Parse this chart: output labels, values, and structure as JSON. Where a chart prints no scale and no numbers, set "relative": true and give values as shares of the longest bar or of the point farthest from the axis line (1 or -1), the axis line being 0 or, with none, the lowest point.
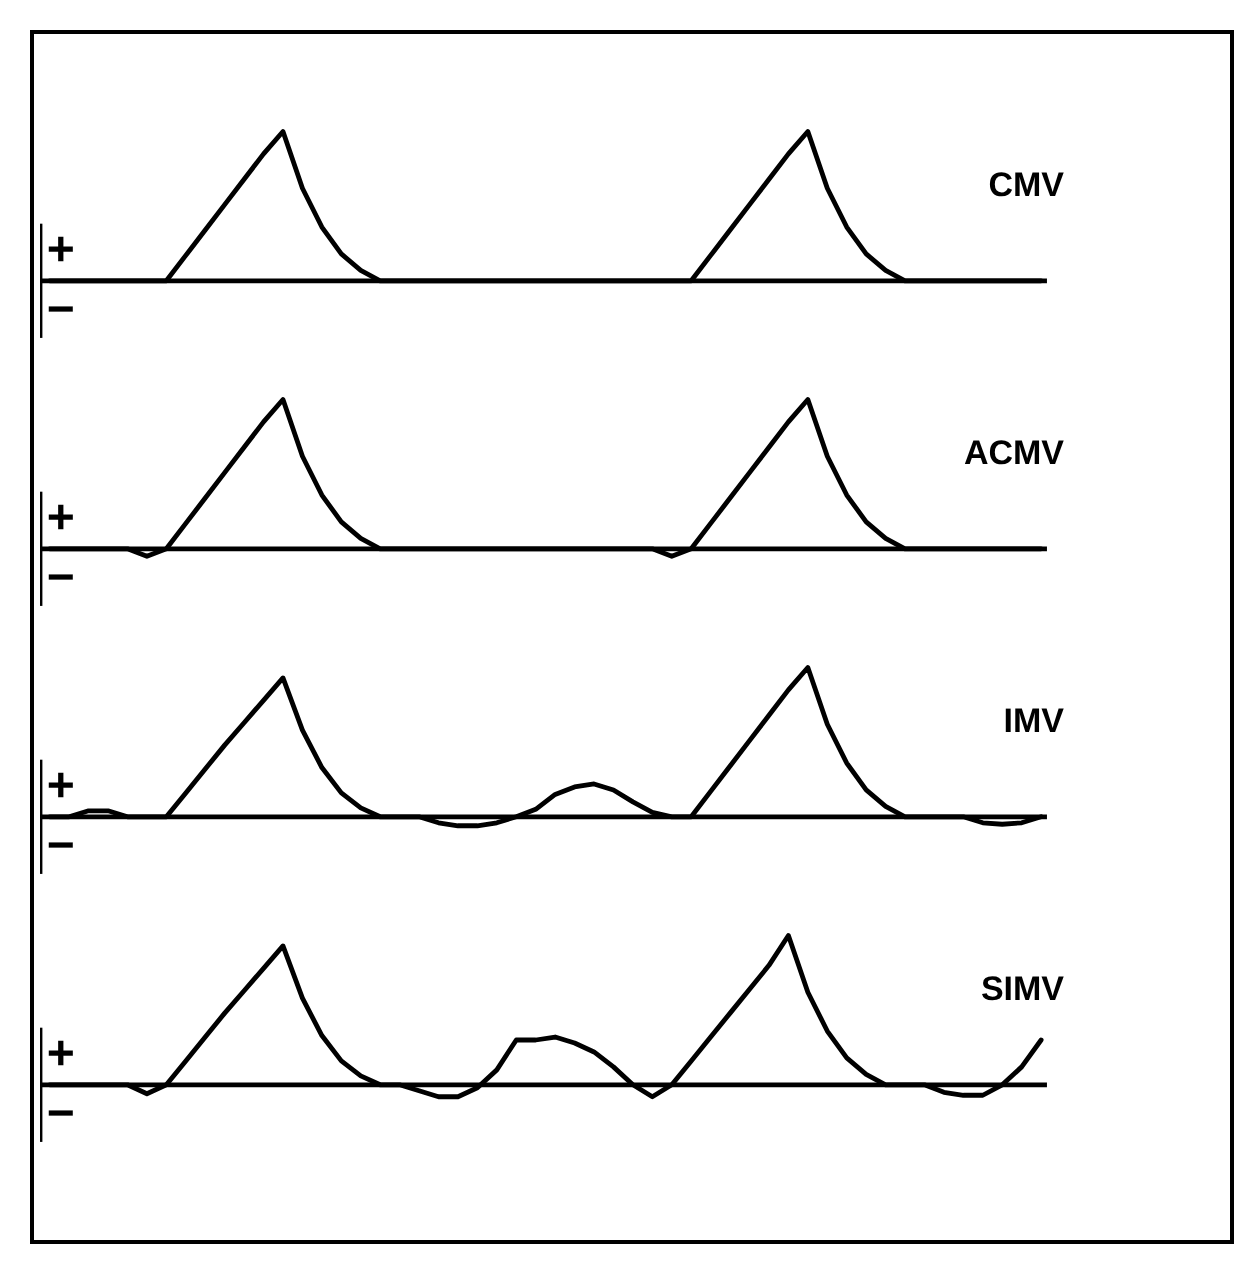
{
  "chart_data": [
    {
      "type": "line",
      "title": "CMV",
      "relative": true,
      "annotations": [
        "+",
        "−"
      ],
      "categories": [
        null,
        null,
        null,
        null,
        null,
        null,
        null,
        null,
        null,
        null,
        null,
        null,
        null,
        null,
        null,
        null,
        null,
        null,
        null,
        null,
        null,
        null,
        null,
        null,
        null,
        null,
        null,
        null,
        null,
        null,
        null,
        null,
        null,
        null,
        null,
        null,
        null,
        null,
        null,
        null,
        null,
        null,
        null,
        null,
        null,
        null,
        null,
        null,
        null,
        null,
        null,
        null
      ],
      "series": [
        {
          "color": "#000000",
          "values": [
            0,
            0,
            0,
            0,
            0,
            0,
            0,
            0.17,
            0.34,
            0.51,
            0.68,
            0.85,
            1,
            0.62,
            0.36,
            0.18,
            0.07,
            0,
            0,
            0,
            0,
            0,
            0,
            0,
            0,
            0,
            0,
            0,
            0,
            0,
            0,
            0,
            0,
            0,
            0.17,
            0.34,
            0.51,
            0.68,
            0.85,
            1,
            0.62,
            0.36,
            0.18,
            0.07,
            0,
            0,
            0,
            0,
            0,
            0,
            0,
            0
          ]
        }
      ]
    },
    {
      "type": "line",
      "title": "ACMV",
      "relative": true,
      "annotations": [
        "+",
        "−"
      ],
      "categories": [
        null,
        null,
        null,
        null,
        null,
        null,
        null,
        null,
        null,
        null,
        null,
        null,
        null,
        null,
        null,
        null,
        null,
        null,
        null,
        null,
        null,
        null,
        null,
        null,
        null,
        null,
        null,
        null,
        null,
        null,
        null,
        null,
        null,
        null,
        null,
        null,
        null,
        null,
        null,
        null,
        null,
        null,
        null,
        null,
        null,
        null,
        null,
        null,
        null,
        null,
        null,
        null
      ],
      "series": [
        {
          "color": "#000000",
          "values": [
            0,
            0,
            0,
            0,
            0,
            -0.05,
            0,
            0.17,
            0.34,
            0.51,
            0.68,
            0.85,
            1,
            0.62,
            0.36,
            0.18,
            0.07,
            0,
            0,
            0,
            0,
            0,
            0,
            0,
            0,
            0,
            0,
            0,
            0,
            0,
            0,
            0,
            -0.05,
            0,
            0.17,
            0.34,
            0.51,
            0.68,
            0.85,
            1,
            0.62,
            0.36,
            0.18,
            0.07,
            0,
            0,
            0,
            0,
            0,
            0,
            0,
            0
          ]
        }
      ]
    },
    {
      "type": "line",
      "title": "IMV",
      "relative": true,
      "annotations": [
        "+",
        "−"
      ],
      "categories": [
        null,
        null,
        null,
        null,
        null,
        null,
        null,
        null,
        null,
        null,
        null,
        null,
        null,
        null,
        null,
        null,
        null,
        null,
        null,
        null,
        null,
        null,
        null,
        null,
        null,
        null,
        null,
        null,
        null,
        null,
        null,
        null,
        null,
        null,
        null,
        null,
        null,
        null,
        null,
        null,
        null,
        null,
        null,
        null,
        null,
        null,
        null,
        null,
        null,
        null,
        null,
        null
      ],
      "series": [
        {
          "color": "#000000",
          "values": [
            0,
            0,
            0.04,
            0.04,
            0,
            0,
            0,
            0.16,
            0.32,
            0.48,
            0.63,
            0.78,
            0.93,
            0.58,
            0.33,
            0.16,
            0.06,
            0,
            0,
            0,
            -0.04,
            -0.06,
            -0.06,
            -0.04,
            0,
            0.05,
            0.15,
            0.2,
            0.22,
            0.18,
            0.1,
            0.03,
            0,
            0,
            0.17,
            0.34,
            0.51,
            0.68,
            0.85,
            1,
            0.62,
            0.36,
            0.18,
            0.07,
            0,
            0,
            0,
            0,
            -0.04,
            -0.05,
            -0.04,
            0
          ]
        }
      ]
    },
    {
      "type": "line",
      "title": "SIMV",
      "relative": true,
      "annotations": [
        "+",
        "−"
      ],
      "categories": [
        null,
        null,
        null,
        null,
        null,
        null,
        null,
        null,
        null,
        null,
        null,
        null,
        null,
        null,
        null,
        null,
        null,
        null,
        null,
        null,
        null,
        null,
        null,
        null,
        null,
        null,
        null,
        null,
        null,
        null,
        null,
        null,
        null,
        null,
        null,
        null,
        null,
        null,
        null,
        null,
        null,
        null,
        null,
        null,
        null,
        null,
        null,
        null,
        null,
        null,
        null,
        null
      ],
      "series": [
        {
          "color": "#000000",
          "values": [
            0,
            0,
            0,
            0,
            0,
            -0.06,
            0,
            0.16,
            0.32,
            0.48,
            0.63,
            0.78,
            0.93,
            0.58,
            0.33,
            0.16,
            0.06,
            0,
            0,
            -0.04,
            -0.08,
            -0.08,
            -0.02,
            0.1,
            0.3,
            0.3,
            0.32,
            0.28,
            0.22,
            0.12,
            0,
            -0.08,
            0,
            0.16,
            0.32,
            0.48,
            0.64,
            0.8,
            1,
            0.62,
            0.36,
            0.18,
            0.07,
            0,
            0,
            0,
            -0.05,
            -0.07,
            -0.07,
            0,
            0.12,
            0.3
          ]
        }
      ]
    }
  ]
}
